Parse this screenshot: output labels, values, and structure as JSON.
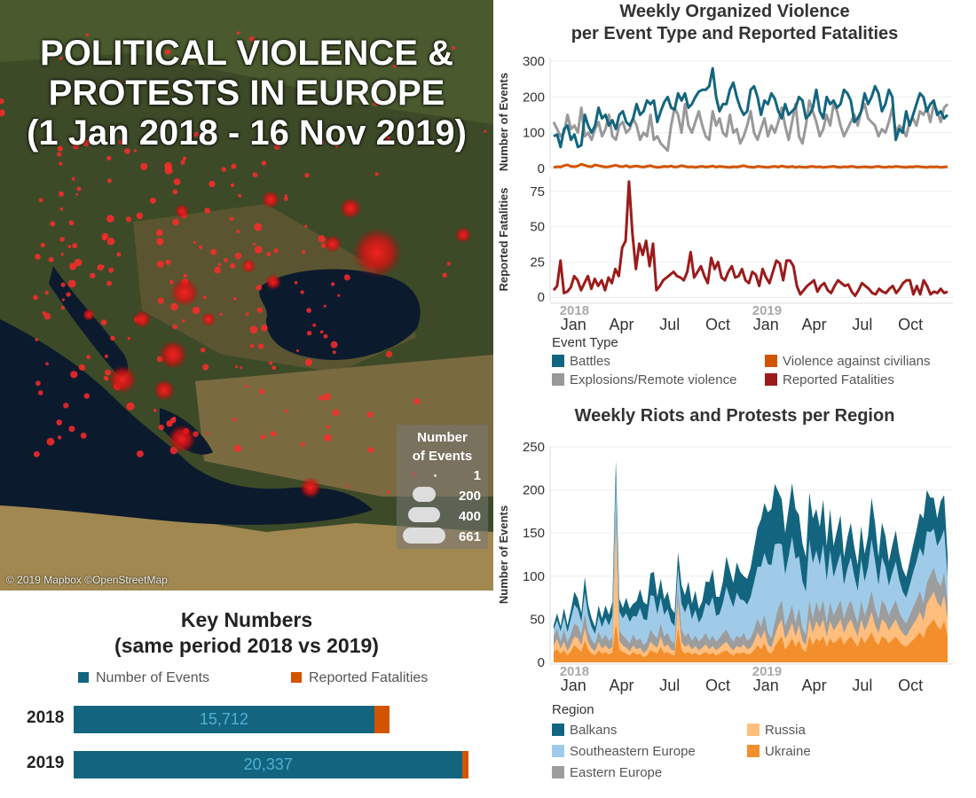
{
  "map": {
    "title_lines": [
      "POLITICAL VIOLENCE &",
      "PROTESTS IN EUROPE",
      "(1 Jan 2018 - 16 Nov 2019)"
    ],
    "credit": "© 2019 Mapbox ©OpenStreetMap",
    "legend": {
      "title_lines": [
        "Number",
        "of Events"
      ],
      "values": [
        "1",
        "200",
        "400",
        "661"
      ]
    }
  },
  "key_numbers": {
    "title_lines": [
      "Key Numbers",
      "(same period 2018 vs 2019)"
    ],
    "legend": [
      {
        "label": "Number of Events",
        "color": "#13657f"
      },
      {
        "label": "Reported Fatalities",
        "color": "#d35400"
      }
    ],
    "rows": [
      {
        "year": "2018",
        "events": 15712,
        "events_label": "15,712",
        "fatalities_share": 0.05
      },
      {
        "year": "2019",
        "events": 20337,
        "events_label": "20,337",
        "fatalities_share": 0.015
      }
    ]
  },
  "chart_data": [
    {
      "type": "line",
      "title_lines": [
        "Weekly Organized Violence",
        "per Event Type and Reported Fatalities"
      ],
      "ylabel": "Number of Events",
      "yticks": [
        "0",
        "100",
        "200",
        "300"
      ],
      "ylim": [
        0,
        310
      ],
      "series": [
        {
          "name": "Battles",
          "color": "#13657f",
          "values": [
            90,
            95,
            60,
            110,
            120,
            80,
            95,
            60,
            65,
            150,
            120,
            100,
            120,
            170,
            140,
            150,
            120,
            135,
            110,
            150,
            160,
            130,
            120,
            140,
            180,
            150,
            160,
            190,
            180,
            190,
            130,
            160,
            185,
            200,
            170,
            165,
            210,
            190,
            210,
            170,
            180,
            200,
            215,
            220,
            220,
            230,
            280,
            200,
            160,
            180,
            180,
            220,
            240,
            200,
            170,
            150,
            160,
            220,
            230,
            200,
            150,
            190,
            180,
            210,
            195,
            160,
            140,
            180,
            150,
            160,
            170,
            200,
            190,
            140,
            150,
            170,
            220,
            160,
            140,
            200,
            180,
            190,
            170,
            180,
            220,
            210,
            190,
            130,
            140,
            160,
            210,
            180,
            200,
            230,
            210,
            160,
            180,
            220,
            200,
            80,
            110,
            100,
            160,
            120,
            150,
            180,
            210,
            200,
            160,
            180,
            190,
            150,
            160,
            140,
            150
          ]
        },
        {
          "name": "Explosions/Remote violence",
          "color": "#999999",
          "values": [
            130,
            110,
            90,
            100,
            150,
            110,
            120,
            100,
            170,
            90,
            100,
            80,
            110,
            130,
            90,
            110,
            150,
            90,
            80,
            120,
            130,
            100,
            110,
            140,
            120,
            80,
            100,
            90,
            150,
            80,
            90,
            70,
            60,
            50,
            120,
            170,
            150,
            100,
            180,
            120,
            100,
            130,
            160,
            120,
            90,
            80,
            160,
            120,
            140,
            100,
            90,
            150,
            100,
            110,
            70,
            90,
            120,
            160,
            100,
            80,
            110,
            140,
            90,
            120,
            100,
            130,
            170,
            120,
            80,
            130,
            180,
            90,
            70,
            120,
            190,
            160,
            130,
            90,
            110,
            150,
            120,
            180,
            160,
            120,
            90,
            110,
            130,
            150,
            120,
            160,
            180,
            140,
            130,
            120,
            90,
            110,
            100,
            130,
            170,
            100,
            120,
            110,
            90,
            130,
            140,
            120,
            160,
            150,
            170,
            130,
            180,
            160,
            130,
            170,
            180
          ]
        },
        {
          "name": "Violence against civilians",
          "color": "#d35400",
          "values": [
            3,
            5,
            4,
            8,
            10,
            6,
            5,
            7,
            12,
            9,
            6,
            5,
            10,
            8,
            6,
            4,
            5,
            7,
            9,
            6,
            5,
            8,
            4,
            6,
            7,
            5,
            4,
            6,
            8,
            5,
            3,
            4,
            6,
            5,
            7,
            4,
            5,
            8,
            6,
            4,
            5,
            3,
            5,
            6,
            4,
            5,
            7,
            4,
            6,
            5,
            4,
            3,
            5,
            4,
            6,
            8,
            5,
            4,
            3,
            6,
            5,
            4,
            3,
            5,
            6,
            4,
            7,
            5,
            4,
            6,
            3,
            5,
            4,
            3,
            5,
            6,
            4,
            5,
            3,
            4,
            5,
            6,
            4,
            3,
            5,
            4,
            6,
            5,
            3,
            4,
            5,
            4,
            3,
            5,
            6,
            4,
            3,
            5,
            4,
            6,
            5,
            4,
            3,
            5,
            4,
            6,
            5,
            4,
            3,
            5,
            4,
            5,
            3,
            4,
            5
          ]
        }
      ]
    },
    {
      "type": "line",
      "ylabel": "Reported Fatalities",
      "yticks": [
        "0",
        "25",
        "50",
        "75"
      ],
      "ylim": [
        -3,
        85
      ],
      "xticks": [
        "Jan",
        "Apr",
        "Jul",
        "Oct",
        "Jan",
        "Apr",
        "Jul",
        "Oct"
      ],
      "year_labels": [
        "2018",
        "2019"
      ],
      "series": [
        {
          "name": "Reported Fatalities",
          "color": "#9b1b1b",
          "values": [
            5,
            8,
            26,
            3,
            4,
            7,
            15,
            12,
            5,
            10,
            15,
            6,
            13,
            8,
            12,
            5,
            14,
            10,
            20,
            15,
            35,
            40,
            82,
            45,
            20,
            38,
            30,
            40,
            22,
            38,
            5,
            8,
            12,
            14,
            16,
            18,
            15,
            14,
            12,
            18,
            32,
            14,
            18,
            22,
            15,
            10,
            28,
            20,
            25,
            14,
            12,
            18,
            22,
            14,
            15,
            20,
            12,
            10,
            18,
            16,
            8,
            20,
            14,
            10,
            18,
            26,
            24,
            12,
            26,
            26,
            22,
            8,
            2,
            5,
            8,
            10,
            12,
            4,
            8,
            10,
            5,
            3,
            8,
            12,
            10,
            8,
            9,
            4,
            1,
            5,
            10,
            8,
            6,
            3,
            2,
            6,
            4,
            3,
            6,
            8,
            3,
            6,
            10,
            12,
            12,
            2,
            8,
            2,
            12,
            8,
            2,
            4,
            3,
            6,
            3,
            4
          ]
        }
      ]
    },
    {
      "type": "area",
      "title": "Weekly Riots and Protests per Region",
      "ylabel": "Number of Events",
      "yticks": [
        "0",
        "50",
        "100",
        "150",
        "200",
        "250"
      ],
      "ylim": [
        0,
        250
      ],
      "xticks": [
        "Jan",
        "Apr",
        "Jul",
        "Oct",
        "Jan",
        "Apr",
        "Jul",
        "Oct"
      ],
      "year_labels": [
        "2018",
        "2019"
      ],
      "stacked": true,
      "series": [
        {
          "name": "Ukraine",
          "color": "#f28e2b",
          "values": [
            12,
            15,
            10,
            14,
            8,
            13,
            20,
            16,
            12,
            25,
            15,
            10,
            8,
            14,
            10,
            12,
            9,
            11,
            45,
            15,
            12,
            10,
            8,
            12,
            9,
            10,
            6,
            8,
            14,
            12,
            10,
            18,
            10,
            12,
            9,
            8,
            40,
            14,
            10,
            12,
            9,
            11,
            8,
            10,
            12,
            9,
            11,
            8,
            10,
            12,
            14,
            10,
            8,
            11,
            10,
            12,
            9,
            10,
            14,
            20,
            15,
            22,
            12,
            10,
            18,
            25,
            30,
            15,
            20,
            28,
            18,
            25,
            15,
            12,
            30,
            20,
            28,
            24,
            30,
            18,
            28,
            22,
            25,
            30,
            20,
            26,
            30,
            24,
            18,
            30,
            22,
            28,
            35,
            25,
            20,
            30,
            28,
            22,
            26,
            30,
            24,
            20,
            18,
            22,
            26,
            30,
            35,
            28,
            40,
            45,
            50,
            42,
            38,
            48,
            30
          ]
        },
        {
          "name": "Russia",
          "color": "#ffbe7d",
          "values": [
            8,
            12,
            6,
            10,
            5,
            8,
            10,
            12,
            8,
            15,
            8,
            6,
            5,
            10,
            6,
            8,
            6,
            7,
            120,
            10,
            8,
            7,
            5,
            8,
            6,
            7,
            5,
            6,
            10,
            8,
            7,
            12,
            8,
            9,
            6,
            5,
            30,
            10,
            8,
            9,
            6,
            8,
            6,
            7,
            9,
            6,
            8,
            6,
            7,
            9,
            10,
            8,
            6,
            8,
            7,
            9,
            6,
            7,
            10,
            15,
            12,
            15,
            9,
            7,
            13,
            18,
            20,
            12,
            15,
            18,
            12,
            18,
            10,
            8,
            20,
            14,
            20,
            16,
            20,
            12,
            20,
            15,
            18,
            20,
            14,
            18,
            20,
            16,
            12,
            20,
            15,
            18,
            24,
            18,
            14,
            20,
            18,
            15,
            18,
            20,
            16,
            14,
            12,
            15,
            18,
            20,
            24,
            20,
            28,
            30,
            32,
            28,
            26,
            30,
            20
          ]
        },
        {
          "name": "Eastern Europe",
          "color": "#9d9d9d",
          "values": [
            10,
            12,
            8,
            14,
            10,
            12,
            15,
            14,
            12,
            16,
            12,
            10,
            8,
            12,
            10,
            12,
            10,
            11,
            18,
            12,
            11,
            10,
            9,
            12,
            10,
            11,
            9,
            10,
            14,
            12,
            11,
            15,
            12,
            13,
            10,
            9,
            15,
            14,
            12,
            13,
            10,
            12,
            10,
            11,
            13,
            10,
            12,
            10,
            11,
            13,
            14,
            12,
            10,
            12,
            11,
            13,
            10,
            11,
            14,
            16,
            14,
            18,
            13,
            11,
            16,
            20,
            22,
            15,
            18,
            20,
            15,
            20,
            14,
            12,
            22,
            16,
            22,
            18,
            22,
            15,
            22,
            17,
            20,
            22,
            16,
            20,
            22,
            18,
            15,
            22,
            17,
            20,
            24,
            20,
            16,
            22,
            20,
            17,
            20,
            22,
            18,
            16,
            15,
            17,
            20,
            22,
            24,
            20,
            24,
            26,
            28,
            25,
            24,
            26,
            20
          ]
        },
        {
          "name": "Southeastern Europe",
          "color": "#a0cbe8",
          "values": [
            8,
            10,
            12,
            15,
            12,
            18,
            22,
            20,
            15,
            25,
            20,
            15,
            12,
            18,
            15,
            20,
            18,
            25,
            30,
            22,
            20,
            30,
            25,
            22,
            28,
            35,
            30,
            25,
            40,
            45,
            28,
            30,
            25,
            28,
            22,
            20,
            25,
            30,
            28,
            35,
            25,
            30,
            22,
            25,
            35,
            40,
            45,
            30,
            28,
            35,
            50,
            45,
            40,
            50,
            45,
            38,
            42,
            48,
            55,
            60,
            70,
            72,
            80,
            85,
            90,
            75,
            65,
            60,
            70,
            80,
            75,
            60,
            55,
            50,
            70,
            65,
            60,
            55,
            65,
            50,
            60,
            45,
            50,
            55,
            40,
            45,
            50,
            42,
            38,
            48,
            40,
            45,
            60,
            55,
            40,
            50,
            45,
            35,
            40,
            45,
            38,
            32,
            30,
            35,
            40,
            45,
            50,
            55,
            60,
            50,
            45,
            40,
            55,
            50,
            30
          ]
        },
        {
          "name": "Balkans",
          "color": "#13657f",
          "values": [
            5,
            8,
            6,
            10,
            8,
            10,
            15,
            12,
            10,
            18,
            12,
            10,
            8,
            12,
            10,
            14,
            12,
            16,
            22,
            15,
            12,
            18,
            15,
            14,
            18,
            22,
            20,
            18,
            25,
            28,
            20,
            22,
            18,
            20,
            16,
            15,
            18,
            22,
            20,
            25,
            18,
            22,
            16,
            18,
            25,
            28,
            32,
            22,
            20,
            25,
            35,
            32,
            28,
            35,
            32,
            28,
            30,
            34,
            40,
            45,
            55,
            58,
            60,
            65,
            70,
            60,
            52,
            48,
            55,
            62,
            58,
            48,
            44,
            40,
            55,
            52,
            48,
            44,
            52,
            40,
            48,
            36,
            40,
            44,
            32,
            36,
            40,
            34,
            30,
            38,
            32,
            36,
            48,
            44,
            32,
            40,
            36,
            28,
            32,
            36,
            30,
            26,
            24,
            28,
            32,
            36,
            40,
            44,
            48,
            40,
            36,
            32,
            44,
            40,
            24
          ]
        }
      ]
    }
  ]
}
